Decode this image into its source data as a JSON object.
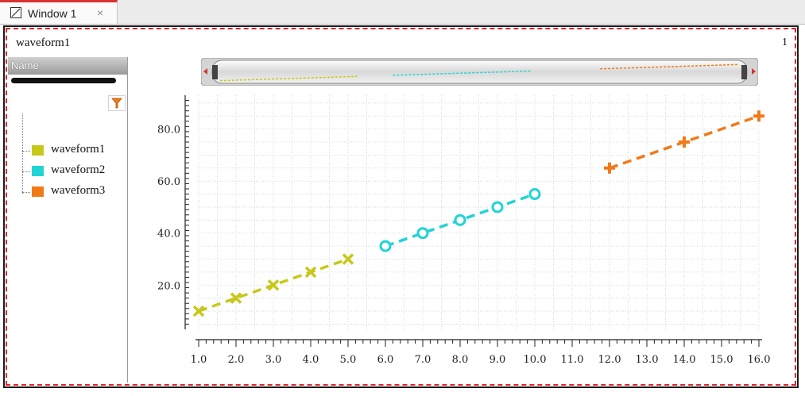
{
  "tab": {
    "title": "Window 1",
    "close": "×"
  },
  "window": {
    "title": "waveform1",
    "corner_label": "1"
  },
  "panel": {
    "header": "Name",
    "items": [
      {
        "label": "waveform1",
        "color": "#c8c81a"
      },
      {
        "label": "waveform2",
        "color": "#21d4d4"
      },
      {
        "label": "waveform3",
        "color": "#f07a18"
      }
    ]
  },
  "colors": {
    "frame_dash": "#e0242b",
    "tab_accent": "#d9332f",
    "grid": "#cfcfcf"
  },
  "icons": [
    "window-icon",
    "close-icon",
    "filter-icon",
    "left-arrow-icon",
    "right-arrow-icon"
  ],
  "chart_data": {
    "type": "line",
    "xlim": [
      1.0,
      16.0
    ],
    "ylim": [
      3,
      93
    ],
    "x_ticks": [
      "1.0",
      "2.0",
      "3.0",
      "4.0",
      "5.0",
      "6.0",
      "7.0",
      "8.0",
      "9.0",
      "10.0",
      "11.0",
      "12.0",
      "13.0",
      "14.0",
      "15.0",
      "16.0"
    ],
    "y_ticks": [
      "20.0",
      "40.0",
      "60.0",
      "80.0"
    ],
    "grid": true,
    "series": [
      {
        "name": "waveform1",
        "color": "#c8c81a",
        "marker": "x",
        "x": [
          1,
          2,
          3,
          4,
          5
        ],
        "y": [
          10,
          15,
          20,
          25,
          30
        ]
      },
      {
        "name": "waveform2",
        "color": "#21d4d4",
        "marker": "o",
        "x": [
          6,
          7,
          8,
          9,
          10
        ],
        "y": [
          35,
          40,
          45,
          50,
          55
        ]
      },
      {
        "name": "waveform3",
        "color": "#f07a18",
        "marker": "+",
        "x": [
          12,
          14,
          16
        ],
        "y": [
          65,
          75,
          85
        ]
      }
    ]
  }
}
